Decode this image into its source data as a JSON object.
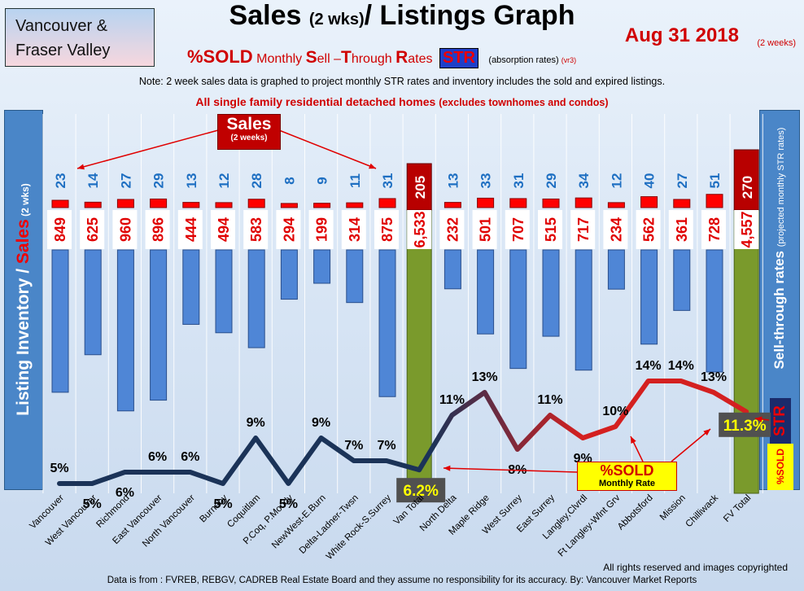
{
  "header": {
    "region_line1": "Vancouver &",
    "region_line2": "Fraser Valley",
    "title_a": "Sales ",
    "title_b": "(2 wks)",
    "title_c": "/ Listings Graph",
    "date": "Aug 31 2018",
    "date_note": "(2 weeks)",
    "sold_big": "%SOLD",
    "sold_m1": "Monthly ",
    "sold_s": "S",
    "sold_m2": "ell –",
    "sold_t": "T",
    "sold_m3": "hrough ",
    "sold_r": "R",
    "sold_m4": "ates",
    "str_badge": "STR",
    "absorption": "(absorption rates)",
    "version": "(vr3)",
    "note": "Note: 2 week sales data is graphed to project monthly STR rates and inventory includes the sold and expired listings.",
    "subtitle": "All single family residential detached homes ",
    "subtitle_sm": "(excludes townhomes and condos)"
  },
  "left_axis": {
    "part1": "Listing Inventory / ",
    "part2": "Sales",
    "part3": " (2 wks)"
  },
  "right_axis": {
    "main": "Sell-through rates ",
    "sub": "(projected monthly STR rates)",
    "str": "STR",
    "sold": "%SOLD"
  },
  "callouts": {
    "sales_l1": "Sales",
    "sales_l2": "(2 weeks)",
    "sold_l1": "%SOLD",
    "sold_l2": "Monthly Rate"
  },
  "colors": {
    "inventory": "#4f86d6",
    "sales": "#ff0000",
    "total": "#7a9a2c",
    "total_sales": "#b80000",
    "line_low": "#1b3358",
    "line_high": "#d42020",
    "callout_yellow": "#ffff00"
  },
  "footer": {
    "copyright": "All rights reserved and  images copyrighted",
    "source": "Data is from : FVREB, REBGV, CADREB Real Estate Board and they assume no responsibility for its accuracy. By: Vancouver Market Reports"
  },
  "chart_data": {
    "type": "bar",
    "categories": [
      "Vancouver",
      "West Vancouver",
      "Richmond",
      "East Vancouver",
      "North Vancouver",
      "Burnaby",
      "Coquitlam",
      "P.Coq, P.Moody",
      "NewWest-E.Burn",
      "Delta-Ladner-Twsn",
      "White Rock-S.Surrey",
      "Van Total",
      "North Delta",
      "Maple Ridge",
      "West Surrey",
      "East Surrey",
      "Langley,Clvrdl",
      "Ft Langley-Wlnt Grv",
      "Abbotsford",
      "Mission",
      "Chilliwack",
      "FV Total"
    ],
    "series": [
      {
        "name": "Listing Inventory",
        "values": [
          849,
          625,
          960,
          896,
          444,
          494,
          583,
          294,
          199,
          314,
          875,
          6533,
          232,
          501,
          707,
          515,
          717,
          234,
          562,
          361,
          728,
          4557
        ],
        "labels": [
          "849",
          "625",
          "960",
          "896",
          "444",
          "494",
          "583",
          "294",
          "199",
          "314",
          "875",
          "6,533",
          "232",
          "501",
          "707",
          "515",
          "717",
          "234",
          "562",
          "361",
          "728",
          "4,557"
        ]
      },
      {
        "name": "Sales",
        "values": [
          23,
          14,
          27,
          29,
          13,
          12,
          28,
          8,
          9,
          11,
          31,
          205,
          13,
          33,
          31,
          29,
          34,
          12,
          40,
          27,
          51,
          270
        ]
      },
      {
        "name": "%SOLD",
        "values": [
          5,
          5,
          6,
          6,
          6,
          5,
          9,
          5,
          9,
          7,
          7,
          6.2,
          11,
          13,
          8,
          11,
          9,
          10,
          14,
          14,
          13,
          11.3
        ],
        "labels": [
          "5%",
          "5%",
          "6%",
          "6%",
          "6%",
          "5%",
          "9%",
          "5%",
          "9%",
          "7%",
          "7%",
          "6.2%",
          "11%",
          "13%",
          "8%",
          "11%",
          "9%",
          "10%",
          "14%",
          "14%",
          "13%",
          "11.3%"
        ]
      }
    ]
  }
}
